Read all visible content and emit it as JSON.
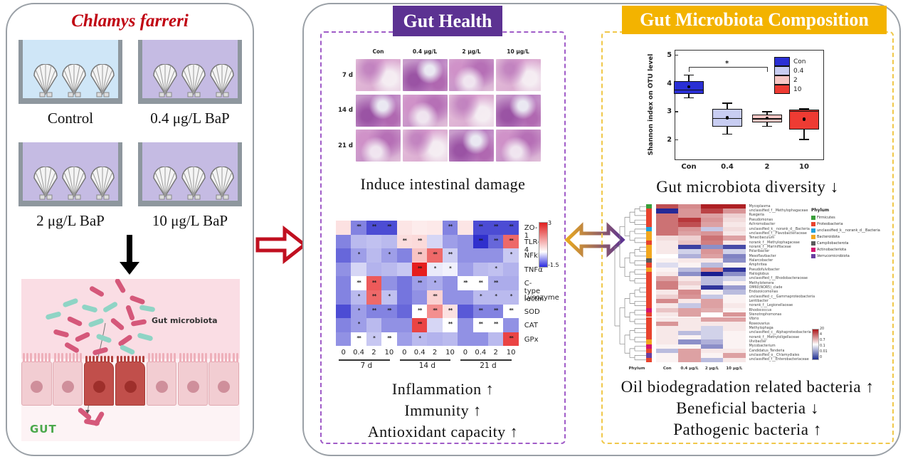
{
  "left_panel": {
    "title": "Chlamys farreri",
    "tanks": [
      {
        "label": "Control"
      },
      {
        "label": "0.4 μg/L BaP"
      },
      {
        "label": "2 μg/L BaP"
      },
      {
        "label": "10 μg/L BaP"
      }
    ],
    "gut_illustration": {
      "microbiota_label": "Gut microbiota",
      "gut_label": "GUT"
    }
  },
  "middle_panel": {
    "header": "Gut Health",
    "histology": {
      "col_labels": [
        "Con",
        "0.4 μg/L",
        "2 μg/L",
        "10 μg/L"
      ],
      "row_labels": [
        "7 d",
        "14 d",
        "21 d"
      ]
    },
    "caption_damage": "Induce intestinal damage",
    "conclusions": [
      "Inflammation ↑",
      "Immunity ↑",
      "Antioxidant capacity ↑"
    ]
  },
  "right_panel": {
    "header": "Gut Microbiota Composition",
    "caption_diversity": "Gut microbiota diversity ↓",
    "conclusions": [
      "Oil biodegradation related bacteria ↑",
      "Beneficial bacteria ↓",
      "Pathogenic bacteria ↑"
    ]
  },
  "chart_data": [
    {
      "id": "shannon_boxplot",
      "type": "boxplot",
      "ylabel": "Shannon index on OTU level",
      "categories": [
        "Con",
        "0.4",
        "2",
        "10"
      ],
      "ylim": [
        1.3,
        5.2
      ],
      "yticks": [
        2,
        3,
        4,
        5
      ],
      "legend_position": "top-right",
      "legend": [
        "Con",
        "0.4",
        "2",
        "10"
      ],
      "colors": [
        "#2a2fd4",
        "#c8cdf2",
        "#f6c6c4",
        "#ee3b33"
      ],
      "series": [
        {
          "name": "Con",
          "whisker_low": 3.5,
          "q1": 3.62,
          "median": 3.75,
          "q3": 4.08,
          "whisker_high": 4.3,
          "mean": 3.87
        },
        {
          "name": "0.4",
          "whisker_low": 2.2,
          "q1": 2.45,
          "median": 2.75,
          "q3": 3.08,
          "whisker_high": 3.3,
          "mean": 2.77
        },
        {
          "name": "2",
          "whisker_low": 2.48,
          "q1": 2.6,
          "median": 2.73,
          "q3": 2.87,
          "whisker_high": 3.0,
          "mean": 2.75
        },
        {
          "name": "10",
          "whisker_low": 2.02,
          "q1": 2.35,
          "median": 3.0,
          "q3": 3.05,
          "whisker_high": 3.1,
          "mean": 2.72
        }
      ],
      "significance": {
        "from": "Con",
        "to": "2",
        "label": "*"
      }
    },
    {
      "id": "gene_heatmap",
      "type": "heatmap",
      "title": "",
      "rows": [
        "ZO-1",
        "TLR-4",
        "NFkB",
        "TNFα",
        "C-type lectin",
        "Lysozyme",
        "SOD",
        "CAT",
        "GPx"
      ],
      "columns": [
        "0",
        "0.4",
        "2",
        "10",
        "0",
        "0.4",
        "2",
        "10",
        "0",
        "0.4",
        "2",
        "10"
      ],
      "col_groups": [
        "7 d",
        "14 d",
        "21 d"
      ],
      "colorbar": {
        "max_label": "3",
        "min_label": "-1.5",
        "max": 3,
        "min": -1.5
      },
      "z": [
        [
          0.4,
          -0.9,
          -1.3,
          -1.3,
          0.35,
          0.25,
          0.3,
          -0.9,
          0.35,
          -1.3,
          -1.3,
          -1.3
        ],
        [
          -0.9,
          -0.5,
          -0.45,
          -0.5,
          0.45,
          0.5,
          -0.3,
          -0.7,
          -0.8,
          -1.5,
          -1.1,
          2.0
        ],
        [
          -1.1,
          -0.7,
          -0.5,
          -0.7,
          -0.9,
          0.8,
          2.0,
          -0.35,
          -0.8,
          -0.8,
          -0.8,
          -0.4
        ],
        [
          -0.8,
          -0.3,
          -0.55,
          -0.5,
          -0.4,
          3.0,
          -0.15,
          -0.1,
          -0.7,
          -0.5,
          -0.45,
          -0.55
        ],
        [
          -0.9,
          0.0,
          2.2,
          -0.8,
          -1.0,
          -0.7,
          -0.6,
          -0.8,
          0.0,
          0.0,
          -0.6,
          -0.6
        ],
        [
          -0.9,
          -0.5,
          2.0,
          -0.45,
          -1.0,
          -0.8,
          0.6,
          -0.8,
          -0.8,
          -0.5,
          -0.5,
          -0.5
        ],
        [
          -1.3,
          -0.7,
          -0.9,
          -0.9,
          -1.1,
          0.0,
          1.5,
          0.4,
          -1.2,
          -0.9,
          -0.9,
          0.0
        ],
        [
          -0.9,
          -0.7,
          -0.5,
          -0.8,
          -0.8,
          2.5,
          -0.3,
          0.0,
          -0.8,
          0.0,
          0.0,
          -0.8
        ],
        [
          -0.8,
          0.0,
          -0.4,
          0.0,
          -0.7,
          -0.5,
          -0.55,
          -0.5,
          -0.8,
          -0.8,
          -0.5,
          2.5
        ]
      ],
      "sig": [
        [
          "",
          "**",
          "**",
          "**",
          "",
          "",
          "",
          "**",
          "",
          "**",
          "**",
          "**"
        ],
        [
          "",
          "",
          "",
          "",
          "**",
          "**",
          "",
          "",
          "",
          "**",
          "**",
          "**"
        ],
        [
          "",
          "*",
          "",
          "*",
          "",
          "**",
          "**",
          "**",
          "",
          "",
          "",
          "*"
        ],
        [
          "",
          "",
          "",
          "",
          "",
          "**",
          "*",
          "*",
          "",
          "",
          "*",
          ""
        ],
        [
          "",
          "**",
          "**",
          "",
          "",
          "**",
          "*",
          "",
          "**",
          "**",
          "**",
          ""
        ],
        [
          "",
          "*",
          "**",
          "*",
          "",
          "",
          "**",
          "",
          "",
          "*",
          "*",
          "*"
        ],
        [
          "",
          "*",
          "**",
          "**",
          "",
          "**",
          "**",
          "**",
          "",
          "**",
          "**",
          "**"
        ],
        [
          "",
          "*",
          "",
          "",
          "",
          "**",
          "",
          "**",
          "",
          "**",
          "**",
          ""
        ],
        [
          "",
          "**",
          "*",
          "**",
          "",
          "*",
          "",
          "",
          "",
          "",
          "",
          "**"
        ]
      ]
    },
    {
      "id": "taxa_heatmap",
      "type": "heatmap",
      "axis_label": "Phylum",
      "columns": [
        "Con",
        "0.4 μg/L",
        "2 μg/L",
        "10 μg/L"
      ],
      "rows": [
        "Mycoplasma",
        "unclassified_f__Methylophagaceae",
        "Ruegeria",
        "Pseudomonas",
        "Achromobacter",
        "unclassified_k__norank_d__Bacteria",
        "unclassified_f__Flavobacteriaceae",
        "Tenacibaculum",
        "norank_f__Methylophagaceae",
        "norank_f__Marinifilaceae",
        "Polaribacter",
        "Mesoflavibacter",
        "Halarcobacter",
        "Amphritea",
        "Pseudofulvibacter",
        "Halioglobus",
        "unclassified_f__Rhodobacteraceae",
        "Methylotenera",
        "OM60(NOR5)_clade",
        "Endozoicomonas",
        "unclassified_c__Gammaproteobacteria",
        "Lentibacter",
        "norank_f__Legionellaceae",
        "Rhodococcus",
        "Stenotrophomonas",
        "Vibrio",
        "Roseovarius",
        "Methylophaga",
        "unclassified_c__Alphaproteobacteria",
        "norank_f__Methyloligellaceae",
        "Ulvibacter",
        "Mycobacterium",
        "Candidatus_Tenderia",
        "unclassified_o__Chlamydiales",
        "unclassified_f__Enterobacteriaceae"
      ],
      "row_phylum": [
        "F",
        "P",
        "P",
        "P",
        "P",
        "U",
        "B",
        "B",
        "P",
        "B",
        "B",
        "B",
        "C",
        "P",
        "B",
        "P",
        "P",
        "P",
        "P",
        "P",
        "P",
        "P",
        "P",
        "A",
        "P",
        "P",
        "P",
        "P",
        "P",
        "P",
        "B",
        "A",
        "P",
        "V",
        "P"
      ],
      "phylum_legend": {
        "title": "Phylum",
        "entries": [
          {
            "key": "F",
            "name": "Firmicutes",
            "color": "#3a9e3a"
          },
          {
            "key": "P",
            "name": "Proteobacteria",
            "color": "#e8432e"
          },
          {
            "key": "U",
            "name": "unclassified_k__norank_d__Bacteria",
            "color": "#22a2dc"
          },
          {
            "key": "B",
            "name": "Bacteroidota",
            "color": "#f2a71f"
          },
          {
            "key": "C",
            "name": "Campilobacterota",
            "color": "#5a5a5a"
          },
          {
            "key": "A",
            "name": "Actinobacteriota",
            "color": "#d4156e"
          },
          {
            "key": "V",
            "name": "Verrucomicrobiota",
            "color": "#6a3fa0"
          }
        ]
      },
      "colorbar_labels": [
        "20",
        "4",
        "0.7",
        "0.1",
        "0.01",
        "0"
      ],
      "values": [
        [
          0.75,
          0.5,
          0.95,
          0.95
        ],
        [
          -0.95,
          0.45,
          0.8,
          0.45
        ],
        [
          0.6,
          0.45,
          0.4,
          0.2
        ],
        [
          0.6,
          0.85,
          0.45,
          0.15
        ],
        [
          0.6,
          0.75,
          0.4,
          0.1
        ],
        [
          0.6,
          0.45,
          -0.25,
          0.15
        ],
        [
          0.6,
          0.4,
          0.45,
          0.1
        ],
        [
          0.15,
          0.2,
          0.6,
          0.4
        ],
        [
          0.1,
          0.25,
          0.55,
          0.1
        ],
        [
          0.1,
          -0.85,
          -0.5,
          -0.8
        ],
        [
          0.1,
          -0.2,
          0.45,
          -0.2
        ],
        [
          0.0,
          -0.35,
          0.4,
          -0.55
        ],
        [
          0.05,
          0.1,
          0.1,
          -0.5
        ],
        [
          -0.15,
          0.05,
          -0.3,
          0.05
        ],
        [
          0.05,
          -0.3,
          0.5,
          -0.9
        ],
        [
          0.1,
          -0.5,
          -1.0,
          -0.5
        ],
        [
          0.4,
          0.1,
          -0.3,
          -0.2
        ],
        [
          0.55,
          0.2,
          -0.3,
          0.05
        ],
        [
          0.55,
          0.1,
          -0.9,
          -0.45
        ],
        [
          0.1,
          0.5,
          0.05,
          -0.3
        ],
        [
          0.2,
          0.45,
          -0.25,
          0.05
        ],
        [
          0.5,
          0.1,
          0.4,
          0.05
        ],
        [
          0.1,
          -0.25,
          0.4,
          0.1
        ],
        [
          0.25,
          0.4,
          0.35,
          0.05
        ],
        [
          0.1,
          0.4,
          0.0,
          0.45
        ],
        [
          0.1,
          0.1,
          0.4,
          0.4
        ],
        [
          0.45,
          0.1,
          0.1,
          0.1
        ],
        [
          0.1,
          0.1,
          -0.2,
          0.1
        ],
        [
          0.1,
          -0.3,
          -0.2,
          0.05
        ],
        [
          0.1,
          0.05,
          -0.2,
          0.05
        ],
        [
          0.1,
          -0.5,
          -0.35,
          0.05
        ],
        [
          0.05,
          0.05,
          -0.5,
          0.05
        ],
        [
          -0.3,
          0.4,
          0.1,
          0.1
        ],
        [
          0.05,
          0.4,
          0.05,
          0.4
        ],
        [
          0.05,
          0.4,
          -0.3,
          0.1
        ]
      ]
    }
  ],
  "colors": {
    "title_red": "#c00010",
    "purple_header": "#5c3292",
    "purple_dash": "#a05cc8",
    "yellow_header": "#f3b300",
    "yellow_dash": "#f0c84a",
    "control_water": "#cfe6f7",
    "bap_water": "#c5bbe3",
    "gut_green": "#4ba84b"
  }
}
